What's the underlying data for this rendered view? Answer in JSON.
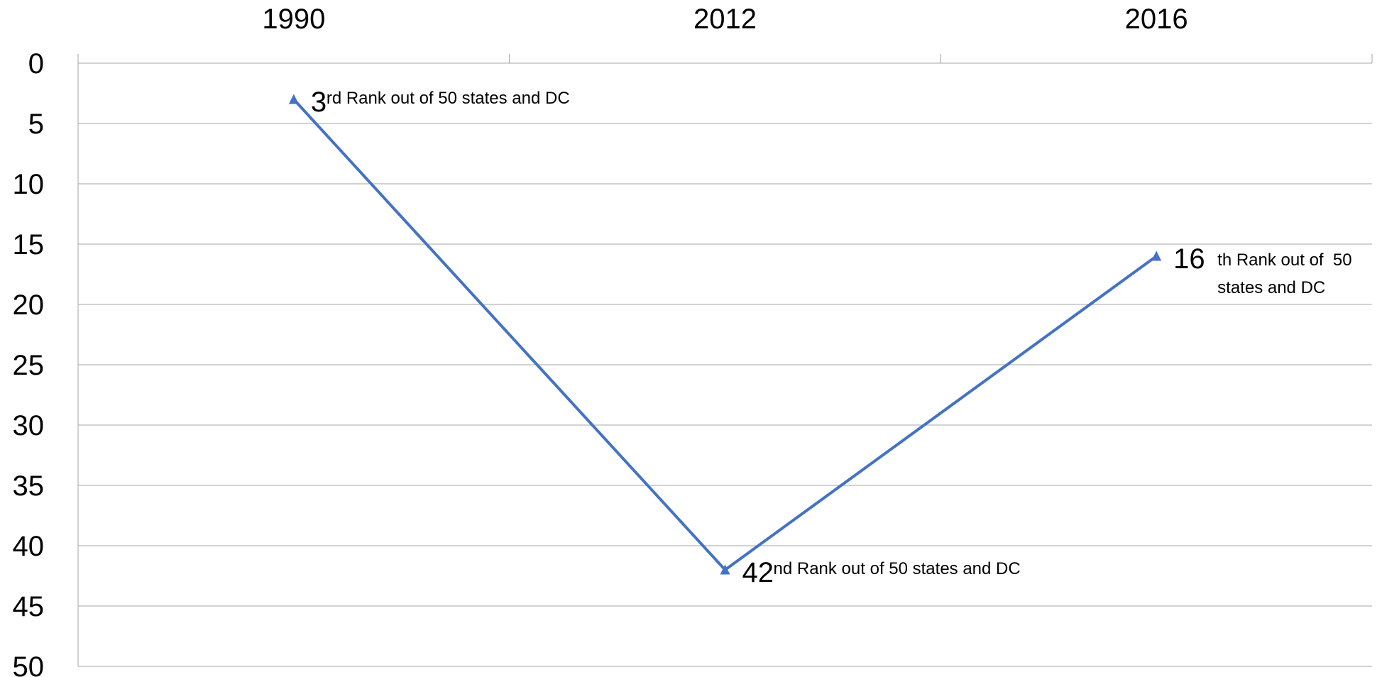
{
  "chart_data": {
    "type": "line",
    "title": "",
    "xlabel": "",
    "ylabel": "",
    "categories": [
      "1990",
      "2012",
      "2016"
    ],
    "ylim": [
      0,
      50
    ],
    "y_inverted": true,
    "y_tick_step": 5,
    "grid": true,
    "x_axis_position": "top",
    "legend": "none",
    "series": [
      {
        "values": [
          3,
          42,
          16
        ],
        "color": "#4472c4",
        "marker": "triangle"
      }
    ],
    "data_labels": [
      {
        "number": "3",
        "text_lines": [
          "rd Rank out of 50 states and DC"
        ]
      },
      {
        "number": "42",
        "text_lines": [
          "nd Rank out of 50 states and DC"
        ]
      },
      {
        "number": "16",
        "text_lines": [
          "th Rank out of  50",
          "states and DC"
        ]
      }
    ]
  }
}
